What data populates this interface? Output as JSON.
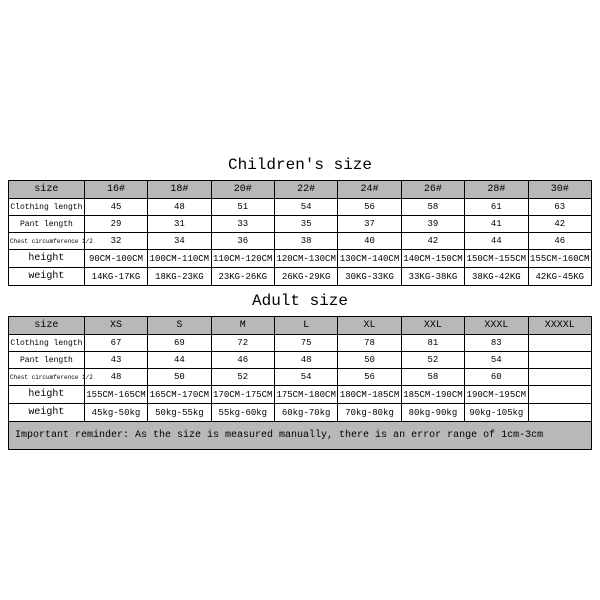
{
  "children": {
    "title": "Children's size",
    "row_labels": [
      "size",
      "Clothing length",
      "Pant length",
      "Chest circumference 1/2",
      "height",
      "weight"
    ],
    "sizes": [
      "16#",
      "18#",
      "20#",
      "22#",
      "24#",
      "26#",
      "28#",
      "30#"
    ],
    "clothing_length": [
      "45",
      "48",
      "51",
      "54",
      "56",
      "58",
      "61",
      "63"
    ],
    "pant_length": [
      "29",
      "31",
      "33",
      "35",
      "37",
      "39",
      "41",
      "42"
    ],
    "chest": [
      "32",
      "34",
      "36",
      "38",
      "40",
      "42",
      "44",
      "46"
    ],
    "height": [
      "90CM-100CM",
      "100CM-110CM",
      "110CM-120CM",
      "120CM-130CM",
      "130CM-140CM",
      "140CM-150CM",
      "150CM-155CM",
      "155CM-160CM"
    ],
    "weight": [
      "14KG-17KG",
      "18KG-23KG",
      "23KG-26KG",
      "26KG-29KG",
      "30KG-33KG",
      "33KG-38KG",
      "38KG-42KG",
      "42KG-45KG"
    ]
  },
  "adult": {
    "title": "Adult size",
    "row_labels": [
      "size",
      "Clothing length",
      "Pant length",
      "Chest circumference 1/2",
      "height",
      "weight"
    ],
    "sizes": [
      "XS",
      "S",
      "M",
      "L",
      "XL",
      "XXL",
      "XXXL",
      "XXXXL"
    ],
    "clothing_length": [
      "67",
      "69",
      "72",
      "75",
      "78",
      "81",
      "83",
      ""
    ],
    "pant_length": [
      "43",
      "44",
      "46",
      "48",
      "50",
      "52",
      "54",
      ""
    ],
    "chest": [
      "48",
      "50",
      "52",
      "54",
      "56",
      "58",
      "60",
      ""
    ],
    "height": [
      "155CM-165CM",
      "165CM-170CM",
      "170CM-175CM",
      "175CM-180CM",
      "180CM-185CM",
      "185CM-190CM",
      "190CM-195CM",
      ""
    ],
    "weight": [
      "45kg-50kg",
      "50kg-55kg",
      "55kg-60kg",
      "60kg-70kg",
      "70kg-80kg",
      "80kg-90kg",
      "90kg-105kg",
      ""
    ]
  },
  "reminder": "Important reminder: As the size is measured manually, there is an error range of 1cm-3cm",
  "colors": {
    "header_bg": "#b8b8b8",
    "border": "#000000",
    "text": "#000000",
    "page_bg": "#ffffff"
  }
}
